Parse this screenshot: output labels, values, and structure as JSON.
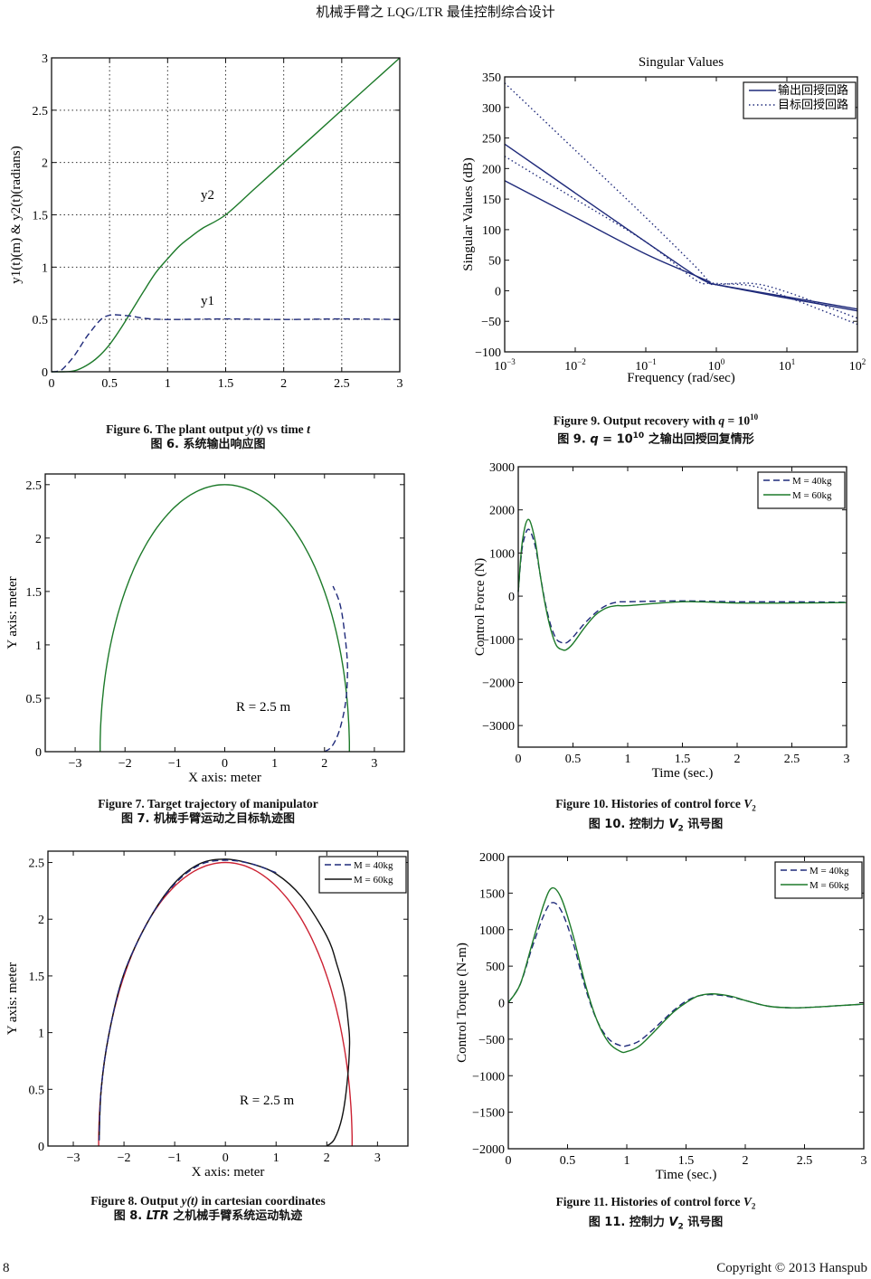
{
  "header": {
    "running_title": "机械手臂之 LQG/LTR 最佳控制综合设计"
  },
  "footer": {
    "page_number": "8",
    "copyright": "Copyright © 2013 Hanspub"
  },
  "colors": {
    "green": "#1d7a2a",
    "navy": "#1f2a7a",
    "black": "#111111",
    "red": "#cc2233"
  },
  "captions": {
    "fig6": {
      "en_prefix": "Figure 6. The plant output ",
      "en_var": "y(t)",
      "en_suffix": " vs time ",
      "en_t": "t",
      "zh": "图 6.  系统输出响应图"
    },
    "fig7": {
      "en": "Figure 7. Target trajectory of manipulator",
      "zh": "图 7.  机械手臂运动之目标轨迹图"
    },
    "fig8": {
      "en_prefix": "Figure 8. Output ",
      "en_var": "y(t)",
      "en_suffix": " in cartesian coordinates",
      "zh_prefix": "图 8. ",
      "zh_var": "LTR",
      "zh_suffix": " 之机械手臂系统运动轨迹"
    },
    "fig9": {
      "en_prefix": "Figure 9. Output recovery with ",
      "en_var": "q",
      "en_eq": " = 10",
      "en_exp": "10",
      "zh_prefix": "图 9. ",
      "zh_var": "q",
      "zh_eq": " = 10",
      "zh_exp": "10",
      "zh_suffix": " 之输出回授回复情形"
    },
    "fig10": {
      "en_prefix": "Figure 10. Histories of control force ",
      "en_var": "V",
      "en_sub": "2",
      "zh_prefix": "图 10.  控制力 ",
      "zh_var": "V",
      "zh_sub": "2",
      "zh_suffix": " 讯号图"
    },
    "fig11": {
      "en_prefix": "Figure 11. Histories of control force ",
      "en_var": "V",
      "en_sub": "2",
      "zh_prefix": "图 11.  控制力 ",
      "zh_var": "V",
      "zh_sub": "2",
      "zh_suffix": " 讯号图"
    }
  },
  "chart_data": [
    {
      "id": "fig6",
      "type": "line",
      "title": "",
      "xlabel": "",
      "ylabel": "y1(t)(m)  &  y2(t)(radians)",
      "xlim": [
        0,
        3
      ],
      "ylim": [
        0,
        3
      ],
      "grid": true,
      "xticks": [
        "0",
        "0.5",
        "1",
        "1.5",
        "2",
        "2.5",
        "3"
      ],
      "yticks": [
        "0",
        "0.5",
        "1",
        "1.5",
        "2",
        "2.5",
        "3"
      ],
      "annotations": [
        "y2",
        "y1"
      ],
      "series": [
        {
          "name": "y2",
          "style": "solid",
          "color": "green",
          "x": [
            0,
            0.1,
            0.2,
            0.3,
            0.4,
            0.5,
            0.6,
            0.7,
            0.8,
            0.9,
            1.0,
            1.1,
            1.2,
            1.3,
            1.5,
            1.75,
            2.0,
            2.25,
            2.5,
            2.75,
            3.0
          ],
          "y": [
            0,
            0.0,
            0.01,
            0.06,
            0.14,
            0.26,
            0.42,
            0.6,
            0.78,
            0.95,
            1.08,
            1.2,
            1.29,
            1.37,
            1.5,
            1.75,
            2.0,
            2.25,
            2.5,
            2.75,
            3.0
          ]
        },
        {
          "name": "y1",
          "style": "dashed",
          "color": "navy",
          "x": [
            0,
            0.05,
            0.1,
            0.2,
            0.3,
            0.4,
            0.45,
            0.5,
            0.55,
            0.6,
            0.7,
            0.8,
            1.0,
            1.5,
            2.0,
            2.5,
            3.0
          ],
          "y": [
            0,
            0.005,
            0.03,
            0.16,
            0.33,
            0.47,
            0.52,
            0.54,
            0.545,
            0.54,
            0.53,
            0.51,
            0.5,
            0.505,
            0.5,
            0.505,
            0.5
          ]
        }
      ]
    },
    {
      "id": "fig9",
      "type": "line",
      "title": "Singular Values",
      "xlabel": "Frequency (rad/sec)",
      "ylabel": "Singular Values (dB)",
      "xscale": "log",
      "xlim": [
        -3,
        2
      ],
      "ylim": [
        -100,
        350
      ],
      "xticks_base": "10",
      "xticks_exp": [
        "−3",
        "−2",
        "−1",
        "0",
        "1",
        "2"
      ],
      "yticks": [
        "−100",
        "−50",
        "0",
        "50",
        "100",
        "150",
        "200",
        "250",
        "300",
        "350"
      ],
      "legend": {
        "position": "top-right",
        "entries": [
          "输出回授回路",
          "目标回授回路"
        ]
      },
      "series": [
        {
          "name": "输出回授回路",
          "style": "solid",
          "color": "navy",
          "x": [
            -3,
            -2,
            -1,
            -0.3,
            -0.1,
            0,
            1,
            2
          ],
          "y": [
            240,
            160,
            80,
            25,
            13,
            10,
            -10,
            -30
          ]
        },
        {
          "name": "输出回授回路",
          "style": "solid",
          "color": "navy",
          "x": [
            -3,
            -2,
            -1,
            -0.3,
            -0.1,
            0,
            1,
            2
          ],
          "y": [
            180,
            120,
            60,
            25,
            15,
            10,
            -12,
            -33
          ]
        },
        {
          "name": "目标回授回路",
          "style": "dotted",
          "color": "navy",
          "x": [
            -3,
            -2,
            -1,
            -0.3,
            -0.1,
            0,
            0.5,
            1,
            2
          ],
          "y": [
            340,
            230,
            120,
            40,
            15,
            12,
            8,
            -10,
            -55
          ]
        },
        {
          "name": "目标回授回路",
          "style": "dotted",
          "color": "navy",
          "x": [
            -3,
            -2,
            -1,
            -0.3,
            -0.1,
            0,
            0.5,
            1,
            2
          ],
          "y": [
            220,
            150,
            80,
            18,
            12,
            10,
            12,
            -2,
            -45
          ]
        }
      ]
    },
    {
      "id": "fig7",
      "type": "line",
      "title": "",
      "xlabel": "X axis: meter",
      "ylabel": "Y axis: meter",
      "xlim": [
        -3.6,
        3.6
      ],
      "ylim": [
        0,
        2.6
      ],
      "grid": false,
      "xticks": [
        "−3",
        "−2",
        "−1",
        "0",
        "1",
        "2",
        "3"
      ],
      "yticks": [
        "0",
        "0.5",
        "1",
        "1.5",
        "2",
        "2.5"
      ],
      "annotations": [
        "R = 2.5 m"
      ],
      "series": [
        {
          "name": "target",
          "style": "solid",
          "color": "green",
          "shape": "semicircle",
          "radius": 2.5
        },
        {
          "name": "response",
          "style": "dashed",
          "color": "navy",
          "x": [
            2.0,
            2.15,
            2.3,
            2.42,
            2.46,
            2.45,
            2.38,
            2.3,
            2.17
          ],
          "y": [
            0,
            0.05,
            0.2,
            0.45,
            0.7,
            0.9,
            1.2,
            1.4,
            1.55
          ]
        }
      ]
    },
    {
      "id": "fig10",
      "type": "line",
      "title": "",
      "xlabel": "Time (sec.)",
      "ylabel": "Control Force (N)",
      "xlim": [
        0,
        3
      ],
      "ylim": [
        -3500,
        3000
      ],
      "grid": false,
      "xticks": [
        "0",
        "0.5",
        "1",
        "1.5",
        "2",
        "2.5",
        "3"
      ],
      "yticks": [
        "−3000",
        "−2000",
        "−1000",
        "0",
        "1000",
        "2000",
        "3000"
      ],
      "legend": {
        "position": "top-right",
        "entries": [
          "M = 40kg",
          "M = 60kg"
        ]
      },
      "series": [
        {
          "name": "M = 40kg",
          "style": "dashed",
          "color": "navy",
          "x": [
            0,
            0.03,
            0.06,
            0.09,
            0.12,
            0.16,
            0.2,
            0.25,
            0.3,
            0.35,
            0.4,
            0.44,
            0.5,
            0.6,
            0.7,
            0.8,
            0.9,
            1.0,
            1.5,
            2.0,
            2.5,
            3.0
          ],
          "y": [
            100,
            1000,
            1400,
            1550,
            1450,
            1100,
            500,
            -200,
            -700,
            -1000,
            -1080,
            -1080,
            -950,
            -650,
            -400,
            -220,
            -140,
            -130,
            -110,
            -130,
            -130,
            -140
          ]
        },
        {
          "name": "M = 60kg",
          "style": "solid",
          "color": "green",
          "x": [
            0,
            0.03,
            0.06,
            0.09,
            0.12,
            0.16,
            0.2,
            0.25,
            0.3,
            0.35,
            0.4,
            0.44,
            0.5,
            0.6,
            0.7,
            0.8,
            0.9,
            1.0,
            1.5,
            2.0,
            2.5,
            3.0
          ],
          "y": [
            100,
            1100,
            1600,
            1780,
            1650,
            1200,
            500,
            -250,
            -800,
            -1150,
            -1240,
            -1240,
            -1100,
            -750,
            -450,
            -280,
            -220,
            -220,
            -130,
            -160,
            -160,
            -150
          ]
        }
      ]
    },
    {
      "id": "fig8",
      "type": "line",
      "title": "",
      "xlabel": "X axis: meter",
      "ylabel": "Y axis: meter",
      "xlim": [
        -3.5,
        3.6
      ],
      "ylim": [
        0,
        2.6
      ],
      "grid": false,
      "xticks": [
        "−3",
        "−2",
        "−1",
        "0",
        "1",
        "2",
        "3"
      ],
      "yticks": [
        "0",
        "0.5",
        "1",
        "1.5",
        "2",
        "2.5"
      ],
      "annotations": [
        "R = 2.5 m"
      ],
      "legend": {
        "position": "top-right",
        "entries": [
          "M = 40kg",
          "M = 60kg"
        ]
      },
      "series": [
        {
          "name": "target",
          "style": "solid",
          "color": "red",
          "shape": "semicircle",
          "radius": 2.5
        },
        {
          "name": "M = 60kg",
          "style": "solid",
          "color": "black",
          "x": [
            2.0,
            2.15,
            2.3,
            2.4,
            2.45,
            2.42,
            2.35,
            2.2,
            2.0,
            1.5,
            1.0,
            0.5,
            0.0,
            -0.5,
            -1.0,
            -1.5,
            -2.0,
            -2.3,
            -2.45,
            -2.49
          ],
          "y": [
            0,
            0.06,
            0.25,
            0.55,
            0.9,
            1.1,
            1.35,
            1.6,
            1.85,
            2.2,
            2.4,
            2.49,
            2.53,
            2.49,
            2.32,
            2.0,
            1.52,
            0.98,
            0.5,
            0.05
          ]
        },
        {
          "name": "M = 40kg",
          "style": "dashed",
          "color": "navy",
          "x": [
            1.0,
            0.5,
            0.0,
            -0.5,
            -1.0,
            -1.5,
            -2.0,
            -2.3,
            -2.45,
            -2.49
          ],
          "y": [
            2.41,
            2.49,
            2.52,
            2.48,
            2.31,
            2.0,
            1.52,
            0.98,
            0.5,
            0.05
          ]
        }
      ]
    },
    {
      "id": "fig11",
      "type": "line",
      "title": "",
      "xlabel": "Time (sec.)",
      "ylabel": "Control Torque (N-m)",
      "xlim": [
        0,
        3
      ],
      "ylim": [
        -2000,
        2000
      ],
      "grid": false,
      "xticks": [
        "0",
        "0.5",
        "1",
        "1.5",
        "2",
        "2.5",
        "3"
      ],
      "yticks": [
        "−2000",
        "−1500",
        "−1000",
        "−500",
        "0",
        "500",
        "1000",
        "1500",
        "2000"
      ],
      "legend": {
        "position": "top-right",
        "entries": [
          "M = 40kg",
          "M = 60kg"
        ]
      },
      "series": [
        {
          "name": "M = 40kg",
          "style": "dashed",
          "color": "navy",
          "x": [
            0,
            0.1,
            0.2,
            0.3,
            0.37,
            0.45,
            0.55,
            0.65,
            0.75,
            0.85,
            0.95,
            1.0,
            1.1,
            1.2,
            1.3,
            1.4,
            1.5,
            1.6,
            1.7,
            1.8,
            1.9,
            2.0,
            2.2,
            2.4,
            2.6,
            2.8,
            3.0
          ],
          "y": [
            0,
            250,
            750,
            1200,
            1370,
            1250,
            800,
            200,
            -250,
            -500,
            -590,
            -590,
            -530,
            -400,
            -250,
            -100,
            20,
            90,
            110,
            100,
            70,
            30,
            -50,
            -70,
            -60,
            -40,
            -20
          ]
        },
        {
          "name": "M = 60kg",
          "style": "solid",
          "color": "green",
          "x": [
            0,
            0.1,
            0.2,
            0.3,
            0.37,
            0.45,
            0.55,
            0.65,
            0.75,
            0.85,
            0.95,
            1.0,
            1.1,
            1.2,
            1.3,
            1.4,
            1.5,
            1.6,
            1.7,
            1.8,
            1.9,
            2.0,
            2.2,
            2.4,
            2.6,
            2.8,
            3.0
          ],
          "y": [
            0,
            250,
            800,
            1350,
            1570,
            1420,
            900,
            250,
            -250,
            -550,
            -670,
            -670,
            -600,
            -450,
            -280,
            -120,
            0,
            90,
            120,
            110,
            80,
            30,
            -50,
            -70,
            -60,
            -40,
            -20
          ]
        }
      ]
    }
  ]
}
